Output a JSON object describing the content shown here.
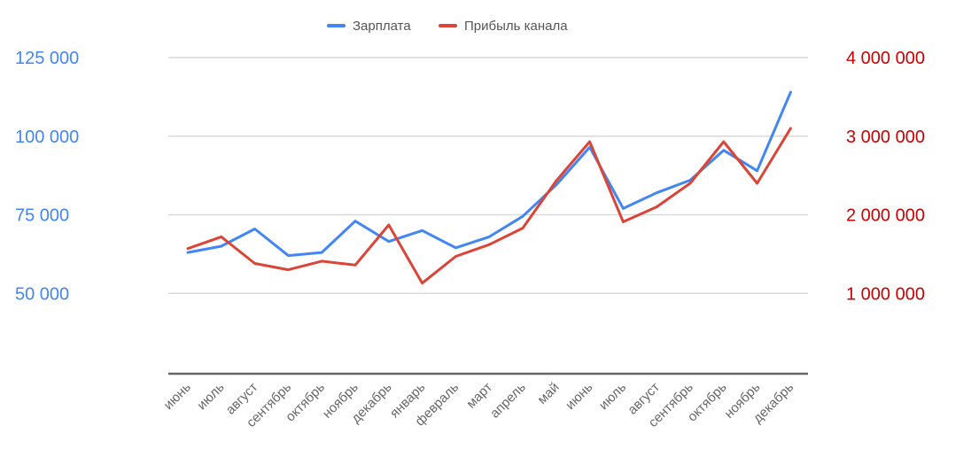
{
  "chart_data": {
    "type": "line",
    "title": "",
    "xlabel": "",
    "ylabel": "",
    "legend_position": "top-center",
    "grid": true,
    "categories": [
      "июнь",
      "июль",
      "август",
      "сентябрь",
      "октябрь",
      "ноябрь",
      "декабрь",
      "январь",
      "февраль",
      "март",
      "апрель",
      "май",
      "июнь",
      "июль",
      "август",
      "сентябрь",
      "октябрь",
      "ноябрь",
      "декабрь"
    ],
    "y_left": {
      "ylim": [
        25000,
        125000
      ],
      "ticks": [
        50000,
        75000,
        100000,
        125000
      ],
      "tick_labels": [
        "50 000",
        "75 000",
        "100 000",
        "125 000"
      ],
      "color": "#4285f4"
    },
    "y_right": {
      "ylim": [
        0,
        4000000
      ],
      "ticks": [
        1000000,
        2000000,
        3000000,
        4000000
      ],
      "tick_labels": [
        "1 000 000",
        "2 000 000",
        "3 000 000",
        "4 000 000"
      ],
      "color": "#cc0000"
    },
    "series": [
      {
        "name": "Зарплата",
        "axis": "left",
        "color": "#4285f4",
        "values": [
          63000,
          65000,
          70500,
          62000,
          63000,
          73000,
          66500,
          70000,
          64500,
          68000,
          74500,
          84500,
          96500,
          77000,
          82000,
          86000,
          95500,
          89000,
          114000
        ]
      },
      {
        "name": "Прибыль канала",
        "axis": "right",
        "color": "#db4437",
        "values": [
          1570000,
          1720000,
          1380000,
          1300000,
          1410000,
          1360000,
          1870000,
          1130000,
          1470000,
          1620000,
          1830000,
          2430000,
          2930000,
          1910000,
          2100000,
          2400000,
          2930000,
          2400000,
          3100000
        ]
      }
    ]
  }
}
